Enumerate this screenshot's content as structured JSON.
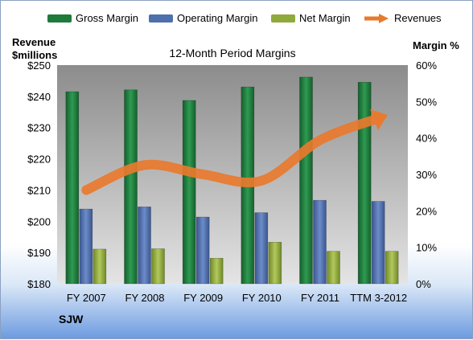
{
  "legend": {
    "gross": "Gross Margin",
    "operating": "Operating Margin",
    "net": "Net Margin",
    "revenues": "Revenues"
  },
  "left_axis_title_line1": "Revenue",
  "left_axis_title_line2": "$millions",
  "right_axis_title": "Margin %",
  "company": "SJW",
  "colors": {
    "gross": "#1f7a3c",
    "operating": "#4f6fad",
    "net": "#8faa3c",
    "revenues": "#e87a2e"
  },
  "chart_data": {
    "type": "bar",
    "title": "12-Month Period Margins",
    "categories": [
      "FY 2007",
      "FY 2008",
      "FY 2009",
      "FY 2010",
      "FY 2011",
      "TTM 3-2012"
    ],
    "series": [
      {
        "name": "Gross Margin",
        "type": "bar",
        "axis": "right",
        "values": [
          52.7,
          53.2,
          50.3,
          54.0,
          56.7,
          55.3
        ]
      },
      {
        "name": "Operating Margin",
        "type": "bar",
        "axis": "right",
        "values": [
          20.5,
          21.1,
          18.3,
          19.5,
          22.9,
          22.6
        ]
      },
      {
        "name": "Net Margin",
        "type": "bar",
        "axis": "right",
        "values": [
          9.5,
          9.6,
          7.0,
          11.4,
          8.9,
          8.9
        ]
      },
      {
        "name": "Revenues",
        "type": "line",
        "axis": "left",
        "values": [
          210,
          218,
          215,
          213,
          226,
          233
        ]
      }
    ],
    "y_left": {
      "min": 180,
      "max": 250,
      "ticks": [
        "$180",
        "$190",
        "$200",
        "$210",
        "$220",
        "$230",
        "$240",
        "$250"
      ]
    },
    "y_right": {
      "min": 0,
      "max": 60,
      "ticks": [
        "0%",
        "10%",
        "20%",
        "30%",
        "40%",
        "50%",
        "60%"
      ]
    },
    "grid": false,
    "legend_position": "top"
  }
}
